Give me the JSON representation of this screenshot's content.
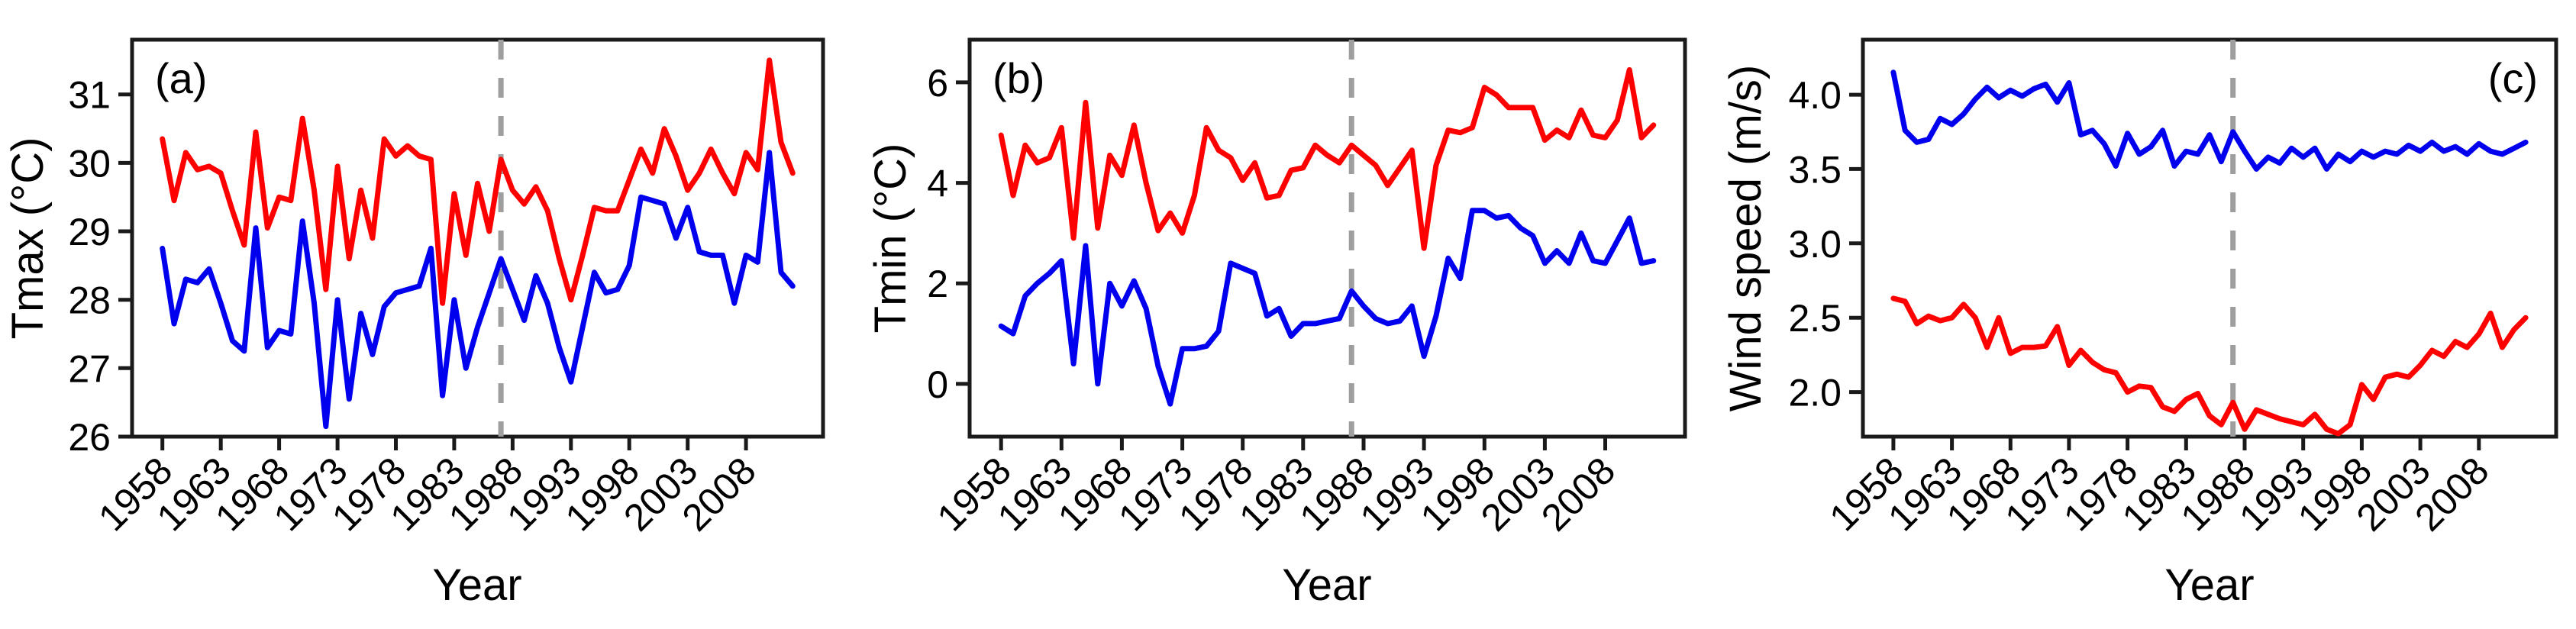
{
  "figure": {
    "xlabel": "Year",
    "background_color": "#ffffff",
    "axis_color": "#1a1a1a",
    "dashed_line_color": "#9e9e9e",
    "red_color": "#ff0000",
    "blue_color": "#0000ee",
    "x_tick_labels": [
      "1958",
      "1963",
      "1968",
      "1973",
      "1978",
      "1983",
      "1988",
      "1993",
      "1998",
      "2003",
      "2008"
    ],
    "x_ticks": [
      1958,
      1963,
      1968,
      1973,
      1978,
      1983,
      1988,
      1993,
      1998,
      2003,
      2008
    ]
  },
  "chart_data": [
    {
      "type": "line",
      "panel_label": "(a)",
      "panel_label_side": "left",
      "ylabel": "Tmax (°C)",
      "xlabel": "Year",
      "legend": "none",
      "grid": false,
      "dashed_vline_year": 1987,
      "xlim": [
        1955.4,
        2014.6
      ],
      "ylim": [
        26,
        31.8
      ],
      "yticks": [
        26,
        27,
        28,
        29,
        30,
        31
      ],
      "ytick_labels": [
        "26",
        "27",
        "28",
        "29",
        "30",
        "31"
      ],
      "x": [
        1958,
        1959,
        1960,
        1961,
        1962,
        1963,
        1964,
        1965,
        1966,
        1967,
        1968,
        1969,
        1970,
        1971,
        1972,
        1973,
        1974,
        1975,
        1976,
        1977,
        1978,
        1979,
        1980,
        1981,
        1982,
        1983,
        1984,
        1985,
        1986,
        1987,
        1988,
        1989,
        1990,
        1991,
        1992,
        1993,
        1994,
        1995,
        1996,
        1997,
        1998,
        1999,
        2000,
        2001,
        2002,
        2003,
        2004,
        2005,
        2006,
        2007,
        2008,
        2009,
        2010,
        2011,
        2012
      ],
      "series": [
        {
          "name": "red",
          "color": "#ff0000",
          "values": [
            30.35,
            29.45,
            30.15,
            29.9,
            29.95,
            29.85,
            29.3,
            28.8,
            30.45,
            29.05,
            29.5,
            29.45,
            30.65,
            29.6,
            28.15,
            29.95,
            28.6,
            29.6,
            28.9,
            30.35,
            30.1,
            30.25,
            30.1,
            30.05,
            27.95,
            29.55,
            28.65,
            29.7,
            29.0,
            30.05,
            29.6,
            29.4,
            29.65,
            29.3,
            28.6,
            28.0,
            28.65,
            29.35,
            29.3,
            29.3,
            29.75,
            30.2,
            29.85,
            30.5,
            30.1,
            29.6,
            29.85,
            30.2,
            29.85,
            29.55,
            30.15,
            29.9,
            31.5,
            30.3,
            29.85
          ]
        },
        {
          "name": "blue",
          "color": "#0000ee",
          "values": [
            28.75,
            27.65,
            28.3,
            28.25,
            28.45,
            27.95,
            27.4,
            27.25,
            29.05,
            27.3,
            27.55,
            27.5,
            29.15,
            27.95,
            26.15,
            28.0,
            26.55,
            27.8,
            27.2,
            27.9,
            28.1,
            28.15,
            28.2,
            28.75,
            26.6,
            28.0,
            27.0,
            27.6,
            28.1,
            28.6,
            28.15,
            27.7,
            28.35,
            27.95,
            27.3,
            26.8,
            27.6,
            28.4,
            28.1,
            28.15,
            28.5,
            29.5,
            29.45,
            29.4,
            28.9,
            29.35,
            28.7,
            28.65,
            28.65,
            27.95,
            28.65,
            28.55,
            30.15,
            28.4,
            28.2
          ]
        }
      ]
    },
    {
      "type": "line",
      "panel_label": "(b)",
      "panel_label_side": "left",
      "ylabel": "Tmin (°C)",
      "xlabel": "Year",
      "legend": "none",
      "grid": false,
      "dashed_vline_year": 1987,
      "xlim": [
        1955.4,
        2014.6
      ],
      "ylim": [
        -1.05,
        6.85
      ],
      "yticks": [
        0,
        2,
        4,
        6
      ],
      "ytick_labels": [
        "0",
        "2",
        "4",
        "6"
      ],
      "x": [
        1958,
        1959,
        1960,
        1961,
        1962,
        1963,
        1964,
        1965,
        1966,
        1967,
        1968,
        1969,
        1970,
        1971,
        1972,
        1973,
        1974,
        1975,
        1976,
        1977,
        1978,
        1979,
        1980,
        1981,
        1982,
        1983,
        1984,
        1985,
        1986,
        1987,
        1988,
        1989,
        1990,
        1991,
        1992,
        1993,
        1994,
        1995,
        1996,
        1997,
        1998,
        1999,
        2000,
        2001,
        2002,
        2003,
        2004,
        2005,
        2006,
        2007,
        2008,
        2009,
        2010,
        2011,
        2012
      ],
      "series": [
        {
          "name": "red",
          "color": "#ff0000",
          "values": [
            4.95,
            3.75,
            4.75,
            4.4,
            4.5,
            5.1,
            2.9,
            5.6,
            3.1,
            4.55,
            4.15,
            5.15,
            4.0,
            3.05,
            3.4,
            3.0,
            3.75,
            5.1,
            4.65,
            4.5,
            4.05,
            4.4,
            3.7,
            3.75,
            4.25,
            4.3,
            4.75,
            4.55,
            4.4,
            4.75,
            4.55,
            4.35,
            3.95,
            4.3,
            4.65,
            2.7,
            4.35,
            5.05,
            5.0,
            5.1,
            5.9,
            5.75,
            5.5,
            5.5,
            5.5,
            4.85,
            5.05,
            4.9,
            5.45,
            4.95,
            4.9,
            5.25,
            6.25,
            4.9,
            5.15
          ]
        },
        {
          "name": "blue",
          "color": "#0000ee",
          "values": [
            1.15,
            1.0,
            1.75,
            2.0,
            2.2,
            2.45,
            0.4,
            2.75,
            0.0,
            2.0,
            1.55,
            2.05,
            1.5,
            0.35,
            -0.4,
            0.7,
            0.7,
            0.75,
            1.05,
            2.4,
            2.3,
            2.2,
            1.35,
            1.5,
            0.95,
            1.2,
            1.2,
            1.25,
            1.3,
            1.85,
            1.55,
            1.3,
            1.2,
            1.25,
            1.55,
            0.55,
            1.35,
            2.5,
            2.1,
            3.45,
            3.45,
            3.3,
            3.35,
            3.1,
            2.95,
            2.4,
            2.65,
            2.4,
            3.0,
            2.45,
            2.4,
            2.85,
            3.3,
            2.4,
            2.45
          ]
        }
      ]
    },
    {
      "type": "line",
      "panel_label": "(c)",
      "panel_label_side": "right",
      "ylabel": "Wind speed (m/s)",
      "xlabel": "Year",
      "legend": "none",
      "grid": false,
      "dashed_vline_year": 1987,
      "xlim": [
        1955.4,
        2014.6
      ],
      "ylim": [
        1.7,
        4.37
      ],
      "yticks": [
        2.0,
        2.5,
        3.0,
        3.5,
        4.0
      ],
      "ytick_labels": [
        "2.0",
        "2.5",
        "3.0",
        "3.5",
        "4.0"
      ],
      "x": [
        1958,
        1959,
        1960,
        1961,
        1962,
        1963,
        1964,
        1965,
        1966,
        1967,
        1968,
        1969,
        1970,
        1971,
        1972,
        1973,
        1974,
        1975,
        1976,
        1977,
        1978,
        1979,
        1980,
        1981,
        1982,
        1983,
        1984,
        1985,
        1986,
        1987,
        1988,
        1989,
        1990,
        1991,
        1992,
        1993,
        1994,
        1995,
        1996,
        1997,
        1998,
        1999,
        2000,
        2001,
        2002,
        2003,
        2004,
        2005,
        2006,
        2007,
        2008,
        2009,
        2010,
        2011,
        2012
      ],
      "series": [
        {
          "name": "blue",
          "color": "#0000ee",
          "values": [
            4.15,
            3.76,
            3.68,
            3.7,
            3.84,
            3.8,
            3.87,
            3.97,
            4.05,
            3.98,
            4.03,
            3.99,
            4.04,
            4.07,
            3.95,
            4.08,
            3.73,
            3.76,
            3.67,
            3.52,
            3.74,
            3.6,
            3.65,
            3.76,
            3.52,
            3.62,
            3.6,
            3.73,
            3.55,
            3.75,
            3.62,
            3.5,
            3.58,
            3.54,
            3.64,
            3.58,
            3.64,
            3.5,
            3.6,
            3.55,
            3.62,
            3.58,
            3.62,
            3.6,
            3.66,
            3.62,
            3.68,
            3.62,
            3.65,
            3.6,
            3.67,
            3.62,
            3.6,
            3.64,
            3.68
          ]
        },
        {
          "name": "red",
          "color": "#ff0000",
          "values": [
            2.63,
            2.61,
            2.46,
            2.51,
            2.48,
            2.5,
            2.59,
            2.5,
            2.3,
            2.5,
            2.26,
            2.3,
            2.3,
            2.31,
            2.44,
            2.18,
            2.28,
            2.2,
            2.15,
            2.13,
            2.0,
            2.04,
            2.03,
            1.9,
            1.87,
            1.95,
            1.99,
            1.84,
            1.78,
            1.93,
            1.75,
            1.88,
            1.85,
            1.82,
            1.8,
            1.78,
            1.85,
            1.75,
            1.72,
            1.78,
            2.05,
            1.95,
            2.1,
            2.12,
            2.1,
            2.18,
            2.28,
            2.24,
            2.34,
            2.3,
            2.39,
            2.53,
            2.3,
            2.42,
            2.5
          ]
        }
      ]
    }
  ]
}
